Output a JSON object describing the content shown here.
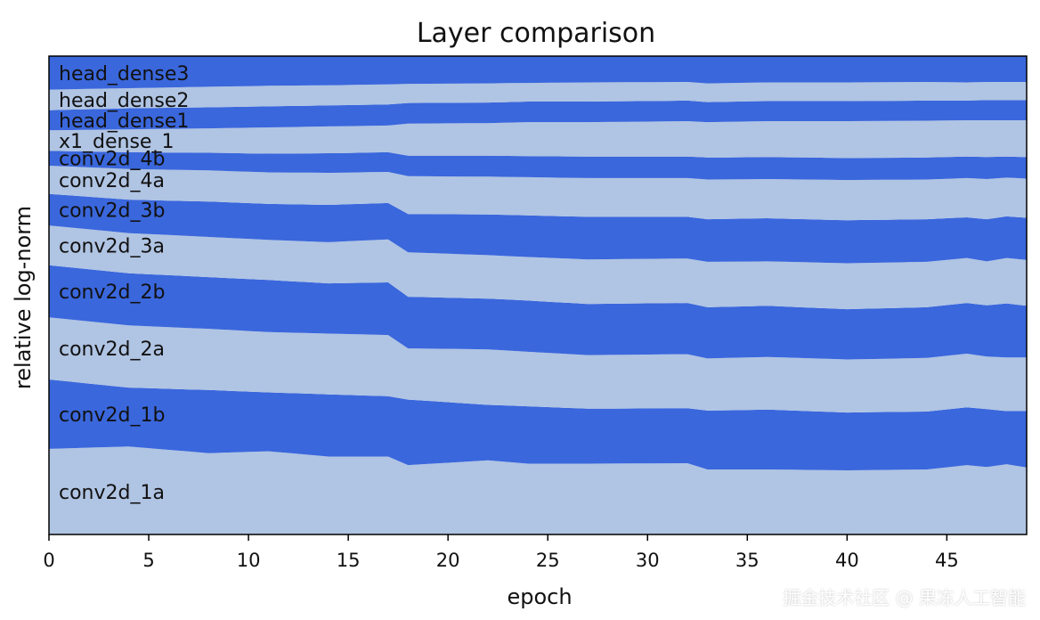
{
  "watermark": "掘金技术社区 @ 果冻人工智能",
  "chart_data": {
    "type": "area",
    "stacked": true,
    "normalized": true,
    "title": "Layer comparison",
    "xlabel": "epoch",
    "ylabel": "relative log-norm",
    "xlim": [
      0,
      49
    ],
    "ylim": [
      0,
      1
    ],
    "xticks": [
      0,
      5,
      10,
      15,
      20,
      25,
      30,
      35,
      40,
      45
    ],
    "yticks": [],
    "grid": false,
    "colors": {
      "dark": "#3a67dc",
      "light": "#b0c4e3",
      "frame": "#000000"
    },
    "x": [
      0,
      1,
      2,
      3,
      4,
      5,
      6,
      7,
      8,
      9,
      10,
      11,
      12,
      13,
      14,
      15,
      16,
      17,
      18,
      19,
      20,
      21,
      22,
      23,
      24,
      25,
      26,
      27,
      28,
      29,
      30,
      31,
      32,
      33,
      34,
      35,
      36,
      37,
      38,
      39,
      40,
      41,
      42,
      43,
      44,
      45,
      46,
      47,
      48,
      49
    ],
    "boundary_knots": {
      "epochs": [
        0,
        4,
        8,
        11,
        14,
        17,
        18,
        22,
        24,
        27,
        32,
        33,
        36,
        40,
        44,
        46,
        47,
        48,
        49
      ],
      "levels": [
        [
          0.179,
          0.184,
          0.17,
          0.174,
          0.163,
          0.163,
          0.145,
          0.155,
          0.148,
          0.148,
          0.149,
          0.136,
          0.136,
          0.134,
          0.136,
          0.145,
          0.141,
          0.147,
          0.14
        ],
        [
          0.324,
          0.307,
          0.302,
          0.297,
          0.293,
          0.289,
          0.282,
          0.271,
          0.268,
          0.263,
          0.264,
          0.259,
          0.261,
          0.255,
          0.257,
          0.266,
          0.262,
          0.258,
          0.258
        ],
        [
          0.454,
          0.437,
          0.43,
          0.423,
          0.42,
          0.417,
          0.389,
          0.387,
          0.382,
          0.375,
          0.377,
          0.368,
          0.371,
          0.366,
          0.369,
          0.378,
          0.372,
          0.37,
          0.37
        ],
        [
          0.563,
          0.546,
          0.538,
          0.532,
          0.525,
          0.527,
          0.497,
          0.493,
          0.489,
          0.482,
          0.484,
          0.475,
          0.478,
          0.471,
          0.475,
          0.484,
          0.479,
          0.483,
          0.478
        ],
        [
          0.646,
          0.63,
          0.622,
          0.616,
          0.611,
          0.617,
          0.59,
          0.584,
          0.58,
          0.575,
          0.577,
          0.57,
          0.571,
          0.567,
          0.57,
          0.578,
          0.571,
          0.578,
          0.574
        ],
        [
          0.712,
          0.7,
          0.696,
          0.691,
          0.689,
          0.693,
          0.67,
          0.669,
          0.667,
          0.664,
          0.664,
          0.659,
          0.661,
          0.657,
          0.659,
          0.663,
          0.659,
          0.665,
          0.662
        ],
        [
          0.771,
          0.764,
          0.761,
          0.757,
          0.756,
          0.758,
          0.749,
          0.748,
          0.747,
          0.745,
          0.745,
          0.742,
          0.743,
          0.741,
          0.742,
          0.745,
          0.743,
          0.746,
          0.744
        ],
        [
          0.802,
          0.799,
          0.798,
          0.796,
          0.797,
          0.799,
          0.792,
          0.792,
          0.791,
          0.79,
          0.79,
          0.788,
          0.789,
          0.787,
          0.788,
          0.79,
          0.789,
          0.79,
          0.789
        ],
        [
          0.845,
          0.847,
          0.849,
          0.851,
          0.853,
          0.855,
          0.859,
          0.86,
          0.862,
          0.862,
          0.864,
          0.862,
          0.864,
          0.864,
          0.865,
          0.866,
          0.866,
          0.866,
          0.866
        ],
        [
          0.887,
          0.891,
          0.893,
          0.895,
          0.897,
          0.899,
          0.902,
          0.903,
          0.905,
          0.905,
          0.907,
          0.904,
          0.906,
          0.906,
          0.907,
          0.907,
          0.908,
          0.908,
          0.908
        ],
        [
          0.93,
          0.933,
          0.936,
          0.938,
          0.939,
          0.941,
          0.942,
          0.943,
          0.944,
          0.945,
          0.946,
          0.943,
          0.945,
          0.945,
          0.946,
          0.945,
          0.946,
          0.946,
          0.946
        ]
      ]
    },
    "series": [
      {
        "name": "conv2d_1a",
        "shade": "light"
      },
      {
        "name": "conv2d_1b",
        "shade": "dark"
      },
      {
        "name": "conv2d_2a",
        "shade": "light"
      },
      {
        "name": "conv2d_2b",
        "shade": "dark"
      },
      {
        "name": "conv2d_3a",
        "shade": "light"
      },
      {
        "name": "conv2d_3b",
        "shade": "dark"
      },
      {
        "name": "conv2d_4a",
        "shade": "light"
      },
      {
        "name": "conv2d_4b",
        "shade": "dark"
      },
      {
        "name": "x1_dense_1",
        "shade": "light"
      },
      {
        "name": "head_dense1",
        "shade": "dark"
      },
      {
        "name": "head_dense2",
        "shade": "light"
      },
      {
        "name": "head_dense3",
        "shade": "dark"
      }
    ]
  }
}
